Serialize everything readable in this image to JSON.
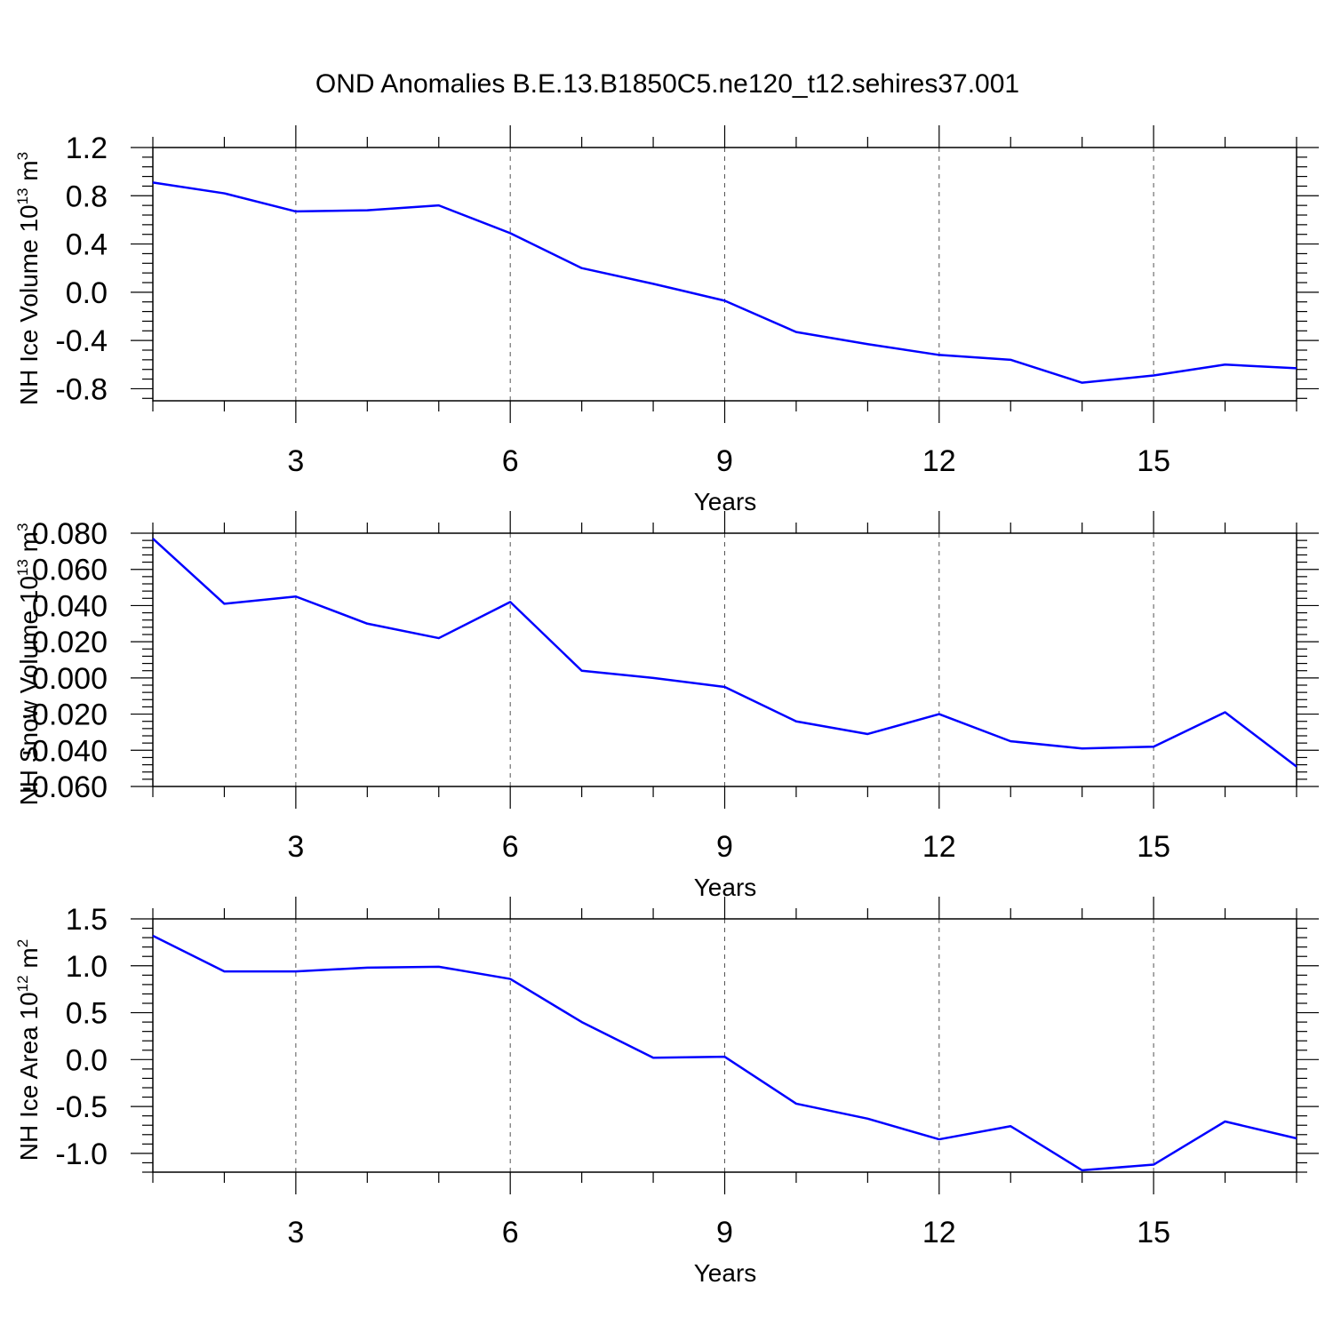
{
  "chart_data": {
    "type": "line",
    "title": "OND Anomalies B.E.13.B1850C5.ne120_t12.sehires37.001",
    "line_color": "#0000ff",
    "x": [
      1,
      2,
      3,
      4,
      5,
      6,
      7,
      8,
      9,
      10,
      11,
      12,
      13,
      14,
      15,
      16,
      17
    ],
    "xlim": [
      1,
      17
    ],
    "x_ticks": [
      3,
      6,
      9,
      12,
      15
    ],
    "x_tick_labels": [
      "3",
      "6",
      "9",
      "12",
      "15"
    ],
    "grid": "vertical dashed at labeled x ticks",
    "panels": [
      {
        "name": "ice-volume",
        "xlabel": "Years",
        "ylabel_main": "NH Ice Volume 10",
        "ylabel_exp": "13",
        "ylabel_unit": " m",
        "ylabel_unit_exp": "3",
        "ylim": [
          -0.9,
          1.2
        ],
        "y_ticks": [
          1.2,
          0.8,
          0.4,
          0.0,
          -0.4,
          -0.8
        ],
        "y_tick_labels": [
          "1.2",
          "0.8",
          "0.4",
          "0.0",
          "-0.4",
          "-0.8"
        ],
        "values": [
          0.91,
          0.82,
          0.67,
          0.68,
          0.72,
          0.49,
          0.2,
          0.07,
          -0.07,
          -0.33,
          -0.43,
          -0.52,
          -0.56,
          -0.75,
          -0.69,
          -0.6,
          -0.63
        ]
      },
      {
        "name": "snow-volume",
        "xlabel": "Years",
        "ylabel_main": "NH Snow Volume 10",
        "ylabel_exp": "13",
        "ylabel_unit": " m",
        "ylabel_unit_exp": "3",
        "ylim": [
          -0.06,
          0.08
        ],
        "y_ticks": [
          0.08,
          0.06,
          0.04,
          0.02,
          0.0,
          -0.02,
          -0.04,
          -0.06
        ],
        "y_tick_labels": [
          "0.080",
          "0.060",
          "0.040",
          "0.020",
          "0.000",
          "-0.020",
          "-0.040",
          "-0.060"
        ],
        "values": [
          0.077,
          0.041,
          0.045,
          0.03,
          0.022,
          0.042,
          0.004,
          0.0,
          -0.005,
          -0.024,
          -0.031,
          -0.02,
          -0.035,
          -0.039,
          -0.038,
          -0.019,
          -0.049
        ]
      },
      {
        "name": "ice-area",
        "xlabel": "Years",
        "ylabel_main": "NH Ice Area 10",
        "ylabel_exp": "12",
        "ylabel_unit": " m",
        "ylabel_unit_exp": "2",
        "ylim": [
          -1.2,
          1.5
        ],
        "y_ticks": [
          1.5,
          1.0,
          0.5,
          0.0,
          -0.5,
          -1.0
        ],
        "y_tick_labels": [
          "1.5",
          "1.0",
          "0.5",
          "0.0",
          "-0.5",
          "-1.0"
        ],
        "values": [
          1.32,
          0.94,
          0.94,
          0.98,
          0.99,
          0.86,
          0.4,
          0.02,
          0.03,
          -0.47,
          -0.63,
          -0.85,
          -0.71,
          -1.18,
          -1.12,
          -0.66,
          -0.84
        ]
      }
    ]
  }
}
